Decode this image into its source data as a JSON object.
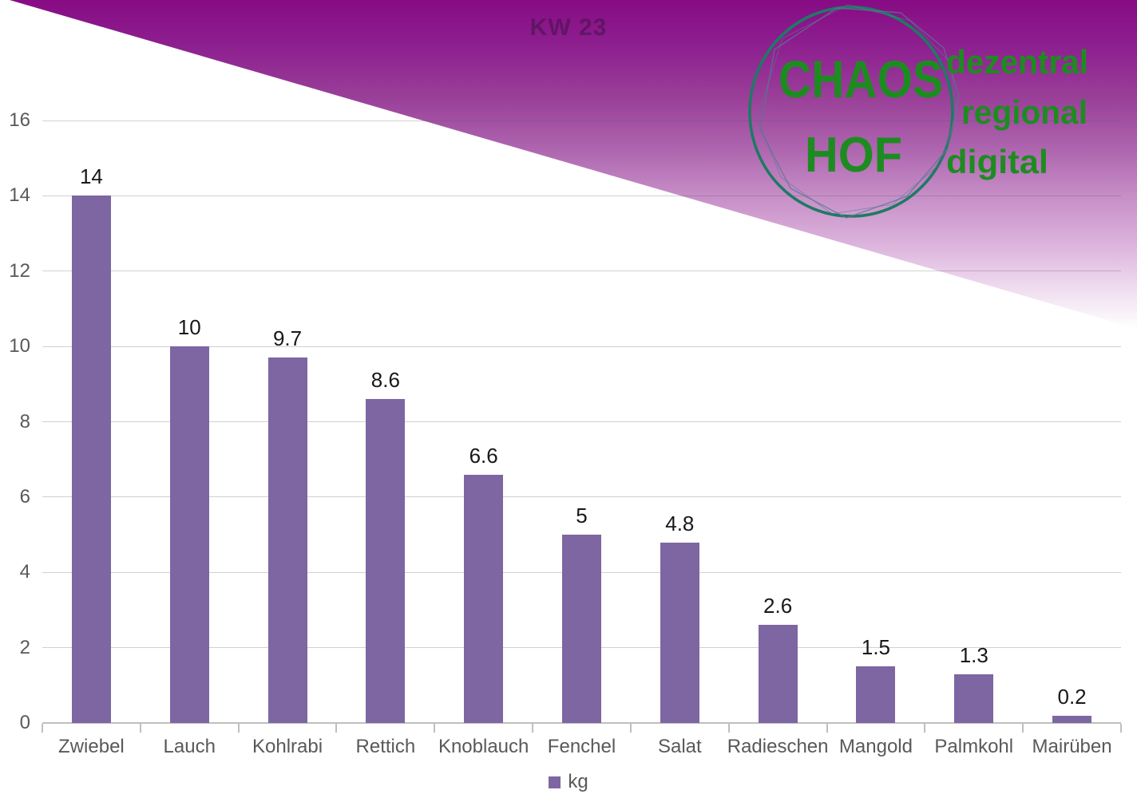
{
  "chart_data": {
    "type": "bar",
    "title": "KW 23",
    "categories": [
      "Zwiebel",
      "Lauch",
      "Kohlrabi",
      "Rettich",
      "Knoblauch",
      "Fenchel",
      "Salat",
      "Radieschen",
      "Mangold",
      "Palmkohl",
      "Mairüben"
    ],
    "values": [
      14,
      10,
      9.7,
      8.6,
      6.6,
      5,
      4.8,
      2.6,
      1.5,
      1.3,
      0.2
    ],
    "labels": [
      "14",
      "10",
      "9.7",
      "8.6",
      "6.6",
      "5",
      "4.8",
      "2.6",
      "1.5",
      "1.3",
      "0.2"
    ],
    "series_name": "kg",
    "xlabel": "",
    "ylabel": "",
    "ylim": [
      0,
      16
    ],
    "yticks": [
      0,
      2,
      4,
      6,
      8,
      10,
      12,
      14,
      16
    ],
    "grid": true,
    "legend_position": "bottom",
    "bar_color": "#7d66a2"
  },
  "legend": {
    "label": "kg",
    "swatch_color": "#7d66a2"
  },
  "logo": {
    "word_top": "CHAOS",
    "word_bottom": "HOF",
    "tagline": [
      "dezentral",
      "regional",
      "digital"
    ],
    "text_color": "#1d8c20",
    "circle_color": "#1e7a64",
    "sketch_color": "#5b7593"
  },
  "colors": {
    "bar": "#7d66a2",
    "axis_text": "#595959",
    "gridline": "#d3d3d3",
    "gradient_top": "#870b84",
    "gradient_bottom": "#ffffff",
    "title_text": "#6a2a72"
  }
}
